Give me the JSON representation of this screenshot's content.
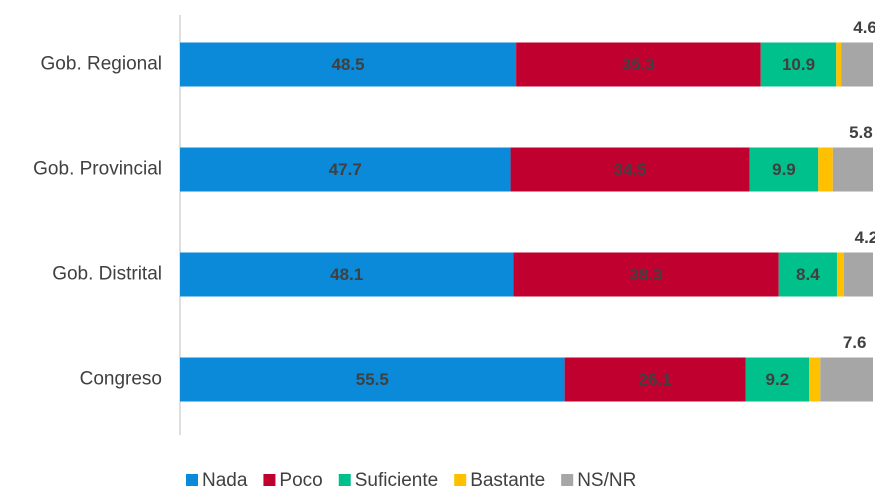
{
  "chart_data": {
    "type": "stacked-barh",
    "categories": [
      "Gob. Regional",
      "Gob. Provincial",
      "Gob. Distrital",
      "Congreso"
    ],
    "series": [
      {
        "name": "Nada",
        "color": "#0a8ad8",
        "values": [
          48.5,
          47.7,
          48.1,
          55.5
        ]
      },
      {
        "name": "Poco",
        "color": "#c0002f",
        "values": [
          35.3,
          34.5,
          38.3,
          26.1
        ]
      },
      {
        "name": "Suficiente",
        "color": "#00c08b",
        "values": [
          10.9,
          9.9,
          8.4,
          9.2
        ]
      },
      {
        "name": "Bastante",
        "color": "#ffc000",
        "values": [
          0.7,
          2.1,
          1.0,
          1.6
        ],
        "show_labels": false
      },
      {
        "name": "NS/NR",
        "color": "#a6a6a6",
        "values": [
          4.6,
          5.8,
          4.2,
          7.6
        ],
        "label_position": "above"
      }
    ],
    "xlim": [
      0,
      100
    ],
    "legend": "bottom"
  }
}
